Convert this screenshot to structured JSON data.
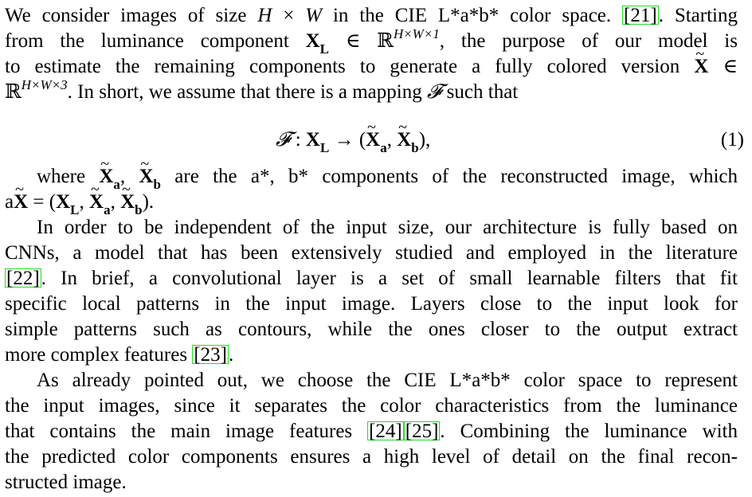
{
  "paragraph1": {
    "l1_a": "We consider images of size ",
    "l1_H": "H",
    "l1_x": " × ",
    "l1_W": "W",
    "l1_b": " in the CIE L*a*b* color space. ",
    "l1_cite": "[21]",
    "l1_c": ". Starting",
    "l2_a": "from the luminance component ",
    "l2_X": "X",
    "l2_L": "L",
    "l2_b": " ∈ ℝ",
    "l2_sup": "H×W×1",
    "l2_c": ", the purpose of our model is",
    "l3_a": "to estimate the remaining components to generate a fully colored version ",
    "l3_X": "X",
    "l3_b": " ∈",
    "l4_a": "ℝ",
    "l4_sup": "H×W×3",
    "l4_b": ". In short, we assume that there is a mapping ",
    "l4_F": "𝓕",
    "l4_c": " such that"
  },
  "equation": {
    "F": "𝓕",
    "colon": " : ",
    "X": "X",
    "L": "L",
    "arrow": " → (",
    "Xa": "X",
    "a": "a",
    "comma": ", ",
    "Xb": "X",
    "b": "b",
    "close": "),",
    "number": "(1)"
  },
  "paragraph2": {
    "l1_a": "where ",
    "l1_Xa": "X",
    "l1_a_sub": "a",
    "l1_comma": ", ",
    "l1_Xb": "X",
    "l1_b_sub": "b",
    "l1_b": " are the a*, b* components of the reconstructed image, which",
    "l2_a": "a",
    "l2_X": "X",
    "l2_eq": " = (",
    "l2_XL": "X",
    "l2_L": "L",
    "l2_c1": ", ",
    "l2_Xa": "X",
    "l2_c2": ", ",
    "l2_Xb": "X",
    "l2_b": "b",
    "l2_end": ")."
  },
  "paragraph3": {
    "l1": "In order to be independent of the input size, our architecture is fully based on",
    "l2": "CNNs, a model that has been extensively studied and employed in the literature",
    "l3_cite": "[22]",
    "l3": ". In brief, a convolutional layer is a set of small learnable filters that fit",
    "l4": "specific local patterns in the input image. Layers close to the input look for",
    "l5": "simple patterns such as contours, while the ones closer to the output extract",
    "l6_a": "more complex features ",
    "l6_cite": "[23]",
    "l6_b": "."
  },
  "paragraph4": {
    "l1": "As already pointed out, we choose the CIE L*a*b* color space to represent",
    "l2": "the input images, since it separates the color characteristics from the luminance",
    "l3_a": "that contains the main image features ",
    "l3_cite1": "[24]",
    "l3_cite2": "[25]",
    "l3_b": ". Combining the luminance with",
    "l4": "the predicted color components ensures a high level of detail on the final recon-",
    "l5": "structed image."
  },
  "colors": {
    "text": "#000000",
    "citation_border": "#22dd22",
    "background": "#ffffff"
  }
}
